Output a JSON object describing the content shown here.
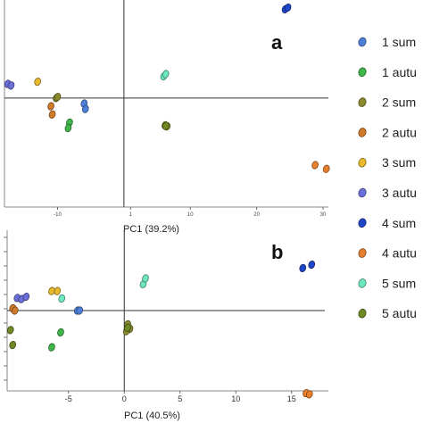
{
  "colors": {
    "1 sum": "#4d7fd6",
    "1 autu": "#3fb54a",
    "2 sum": "#8b8a2e",
    "2 autu": "#cf7a2a",
    "3 sum": "#e9b92d",
    "3 autu": "#6b6fd8",
    "4 sum": "#1f46c8",
    "4 autu": "#e6802f",
    "5 sum": "#6ee6c0",
    "5 autu": "#6f8a25"
  },
  "legend": {
    "entries": [
      "1 sum",
      "1 autu",
      "2 sum",
      "2 autu",
      "3 sum",
      "3 autu",
      "4 sum",
      "4 autu",
      "5 sum",
      "5 autu"
    ]
  },
  "chart_data": [
    {
      "panel": "a",
      "type": "scatter",
      "xlabel": "PC1 (39.2%)",
      "ylabel": "",
      "xlim": [
        -18,
        30
      ],
      "ylim": [
        -20,
        18
      ],
      "x_ticks": [
        "-10",
        "1",
        "10",
        "20",
        "30"
      ],
      "x_tick_values": [
        -10,
        1,
        10,
        20,
        30
      ],
      "grid": false,
      "series": [
        {
          "name": "1 sum",
          "x": [
            -6,
            -5.8
          ],
          "y": [
            -1,
            -2
          ]
        },
        {
          "name": "1 autu",
          "x": [
            -8.2,
            -8.4
          ],
          "y": [
            -4.5,
            -5.5
          ]
        },
        {
          "name": "2 sum",
          "x": [
            -10.2,
            -10,
            6.2,
            6.5
          ],
          "y": [
            0,
            0.2,
            -5,
            -5.2
          ]
        },
        {
          "name": "2 autu",
          "x": [
            -11,
            -10.8
          ],
          "y": [
            -1.5,
            -3
          ]
        },
        {
          "name": "3 sum",
          "x": [
            -13
          ],
          "y": [
            3
          ]
        },
        {
          "name": "3 autu",
          "x": [
            -17.5,
            -17
          ],
          "y": [
            2.6,
            2.3
          ]
        },
        {
          "name": "4 sum",
          "x": [
            24.3,
            24.7
          ],
          "y": [
            16.3,
            16.6
          ]
        },
        {
          "name": "4 autu",
          "x": [
            28.8,
            30.5
          ],
          "y": [
            -12.3,
            -13
          ]
        },
        {
          "name": "5 sum",
          "x": [
            6,
            6.3
          ],
          "y": [
            4,
            4.4
          ]
        },
        {
          "name": "5 autu",
          "x": [
            6.3
          ],
          "y": [
            -5.1
          ]
        }
      ]
    },
    {
      "panel": "b",
      "type": "scatter",
      "xlabel": "PC1 (40.5%)",
      "ylabel": "",
      "xlim": [
        -10.5,
        17.5
      ],
      "ylim": [
        -7,
        7
      ],
      "x_ticks": [
        "-5",
        "0",
        "5",
        "10",
        "15"
      ],
      "x_tick_values": [
        -5,
        0,
        5,
        10,
        15
      ],
      "grid": false,
      "series": [
        {
          "name": "1 sum",
          "x": [
            -4.2,
            -4
          ],
          "y": [
            0,
            0
          ]
        },
        {
          "name": "1 autu",
          "x": [
            -5.7,
            -6.5
          ],
          "y": [
            -1.9,
            -3.2
          ]
        },
        {
          "name": "2 sum",
          "x": [
            0.3,
            0.5,
            0.2
          ],
          "y": [
            -1.2,
            -1.6,
            -1.8
          ]
        },
        {
          "name": "2 autu",
          "x": [
            -10,
            -9.8
          ],
          "y": [
            0.2,
            0
          ]
        },
        {
          "name": "3 sum",
          "x": [
            -6.5,
            -6
          ],
          "y": [
            1.7,
            1.7
          ]
        },
        {
          "name": "3 autu",
          "x": [
            -9.6,
            -9.2,
            -8.8
          ],
          "y": [
            1.1,
            1.0,
            1.2
          ]
        },
        {
          "name": "4 sum",
          "x": [
            16,
            16.8
          ],
          "y": [
            3.7,
            4
          ]
        },
        {
          "name": "4 autu",
          "x": [
            16.3,
            16.6
          ],
          "y": [
            -7.2,
            -7.3
          ]
        },
        {
          "name": "5 sum",
          "x": [
            -5.6,
            1.7,
            1.9
          ],
          "y": [
            1.05,
            2.3,
            2.8
          ]
        },
        {
          "name": "5 autu",
          "x": [
            -10.2,
            -10,
            0.3
          ],
          "y": [
            -1.7,
            -3,
            -1.5
          ]
        }
      ]
    }
  ]
}
